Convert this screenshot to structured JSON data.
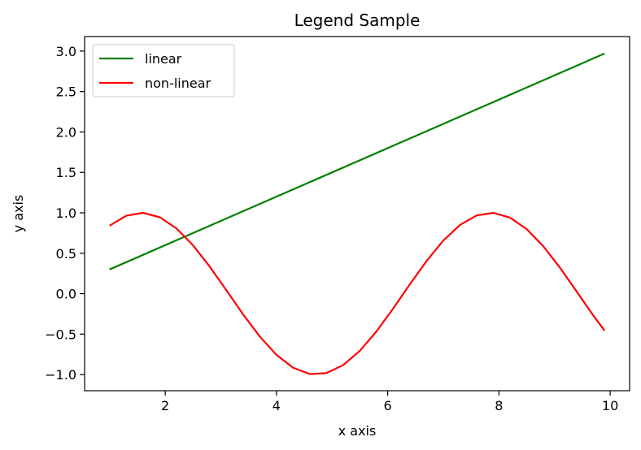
{
  "chart_data": {
    "type": "line",
    "title": "Legend Sample",
    "xlabel": "x axis",
    "ylabel": "y axis",
    "xlim": [
      0.55,
      10.35
    ],
    "ylim": [
      -1.2,
      3.18
    ],
    "xticks": [
      2,
      4,
      6,
      8,
      10
    ],
    "xtick_labels": [
      "2",
      "4",
      "6",
      "8",
      "10"
    ],
    "yticks": [
      -1.0,
      -0.5,
      0.0,
      0.5,
      1.0,
      1.5,
      2.0,
      2.5,
      3.0
    ],
    "ytick_labels": [
      "−1.0",
      "−0.5",
      "0.0",
      "0.5",
      "1.0",
      "1.5",
      "2.0",
      "2.5",
      "3.0"
    ],
    "grid": false,
    "legend_position": "top-left",
    "series": [
      {
        "name": "linear",
        "color": "#008000",
        "x": [
          1.0,
          9.9
        ],
        "y": [
          0.3,
          2.97
        ]
      },
      {
        "name": "non-linear",
        "color": "#ff0000",
        "x": [
          1.0,
          1.3,
          1.6,
          1.9,
          2.2,
          2.5,
          2.8,
          3.1,
          3.4,
          3.7,
          4.0,
          4.3,
          4.6,
          4.9,
          5.2,
          5.5,
          5.8,
          6.1,
          6.4,
          6.7,
          7.0,
          7.3,
          7.6,
          7.9,
          8.2,
          8.5,
          8.8,
          9.1,
          9.4,
          9.7,
          9.9
        ],
        "y": [
          0.841,
          0.964,
          1.0,
          0.946,
          0.808,
          0.598,
          0.335,
          0.042,
          -0.256,
          -0.53,
          -0.757,
          -0.916,
          -0.994,
          -0.982,
          -0.883,
          -0.706,
          -0.465,
          -0.182,
          0.117,
          0.405,
          0.657,
          0.85,
          0.968,
          0.999,
          0.941,
          0.798,
          0.585,
          0.319,
          0.025,
          -0.273,
          -0.457
        ]
      }
    ]
  }
}
